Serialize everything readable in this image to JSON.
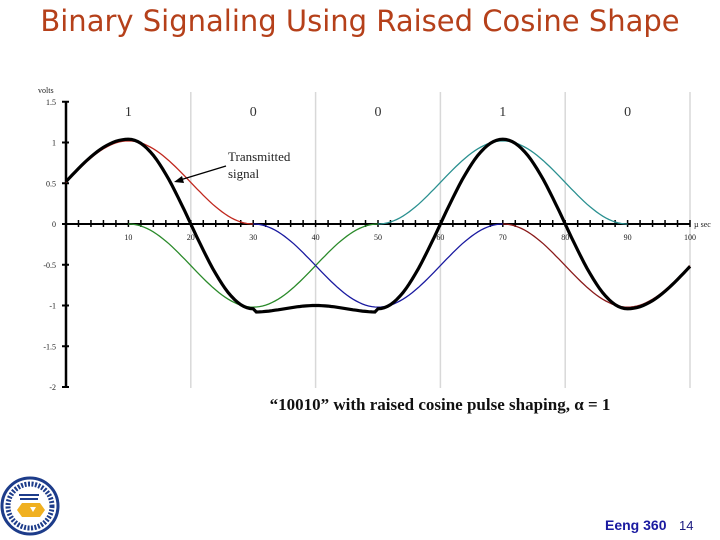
{
  "slide": {
    "title": "Binary Signaling Using Raised Cosine Shape",
    "footer": {
      "course": "Eeng 360",
      "page": "14"
    },
    "logo": "university-seal-icon"
  },
  "chart_data": {
    "type": "line",
    "title": "",
    "caption": "“10010” with raised cosine pulse shaping, α = 1",
    "xlabel": "µ sec",
    "ylabel": "volts",
    "xlim": [
      0,
      100
    ],
    "ylim": [
      -2,
      1.5
    ],
    "x_ticks": [
      10,
      20,
      30,
      40,
      50,
      60,
      70,
      80,
      90,
      100
    ],
    "y_ticks": [
      "1.5",
      "1",
      "0.5",
      "0",
      "-0.5",
      "-1",
      "-1.5",
      "-2"
    ],
    "bits": [
      {
        "label": "1",
        "x": 10
      },
      {
        "label": "0",
        "x": 30
      },
      {
        "label": "0",
        "x": 50
      },
      {
        "label": "1",
        "x": 70
      },
      {
        "label": "0",
        "x": 90
      }
    ],
    "bit_boundaries": [
      20,
      40,
      60,
      80,
      100
    ],
    "annotation": {
      "text_line1": "Transmitted",
      "text_line2": "signal",
      "points_to_x": 17
    },
    "pulse_width_T": 20,
    "series": [
      {
        "name": "pulse bit1 (+1 @10)",
        "color": "#c0281e",
        "center": 10,
        "amplitude": 1
      },
      {
        "name": "pulse bit2 (-1 @30)",
        "color": "#2a8a2a",
        "center": 30,
        "amplitude": -1
      },
      {
        "name": "pulse bit3 (-1 @50)",
        "color": "#1a1aa0",
        "center": 50,
        "amplitude": -1
      },
      {
        "name": "pulse bit4 (+1 @70)",
        "color": "#2a9090",
        "center": 70,
        "amplitude": 1
      },
      {
        "name": "pulse bit5 (-1 @90)",
        "color": "#8a1a1a",
        "center": 90,
        "amplitude": -1
      },
      {
        "name": "Transmitted signal",
        "color": "#000000",
        "sum": true,
        "x": [
          0,
          10,
          20,
          30,
          40,
          50,
          60,
          70,
          80,
          90,
          100
        ],
        "values": [
          0.5,
          1.0,
          0.0,
          -1.0,
          -1.0,
          -1.0,
          0.0,
          1.0,
          0.0,
          -1.0,
          -0.5
        ]
      }
    ]
  }
}
